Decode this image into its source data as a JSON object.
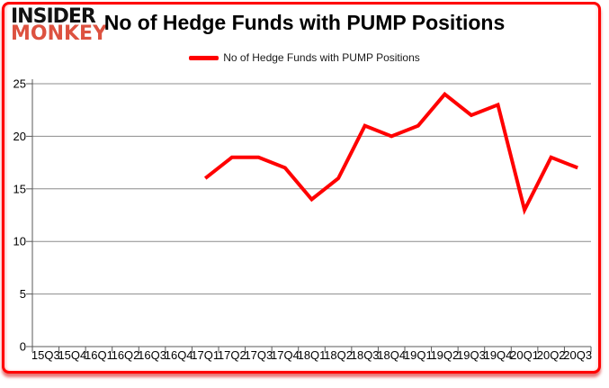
{
  "logo": {
    "line1": "INSIDER",
    "line2": "MONKEY",
    "line1_color": "#121212",
    "line2_color": "#dd5240"
  },
  "title": "No of Hedge Funds with PUMP Positions",
  "legend": {
    "label": "No of Hedge Funds with PUMP Positions",
    "swatch_color": "#ff0000"
  },
  "colors": {
    "line": "#ff0000",
    "gridline": "#8c8c8c",
    "axis": "#595959",
    "tick_label": "#000000",
    "frame": "#ff0000"
  },
  "chart_data": {
    "type": "line",
    "title": "No of Hedge Funds with PUMP Positions",
    "categories": [
      "15Q3",
      "15Q4",
      "16Q1",
      "16Q2",
      "16Q3",
      "16Q4",
      "17Q1",
      "17Q2",
      "17Q3",
      "17Q4",
      "18Q1",
      "18Q2",
      "18Q3",
      "18Q4",
      "19Q1",
      "19Q2",
      "19Q3",
      "19Q4",
      "20Q1",
      "20Q2",
      "20Q3"
    ],
    "series": [
      {
        "name": "No of Hedge Funds with PUMP Positions",
        "color": "#ff0000",
        "start_category": "17Q1",
        "values": [
          16,
          18,
          18,
          17,
          14,
          16,
          21,
          20,
          21,
          24,
          22,
          23,
          13,
          18,
          17
        ]
      }
    ],
    "xlabel": "",
    "ylabel": "",
    "ylim": [
      0,
      25
    ],
    "yticks": [
      0,
      5,
      10,
      15,
      20,
      25
    ],
    "grid": "horizontal",
    "legend_position": "top-center"
  }
}
